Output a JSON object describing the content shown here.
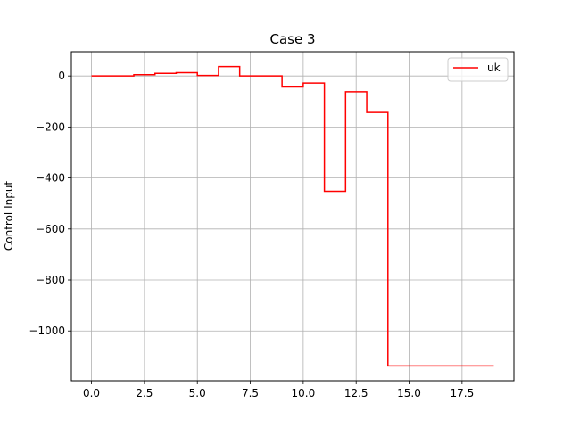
{
  "chart_data": {
    "type": "line",
    "title": "Case 3",
    "xlabel": "",
    "ylabel": "Control Input",
    "xlim": [
      -0.95,
      19.95
    ],
    "ylim": [
      -1195,
      95
    ],
    "xticks": [
      0.0,
      2.5,
      5.0,
      7.5,
      10.0,
      12.5,
      15.0,
      17.5
    ],
    "xtick_labels": [
      "0.0",
      "2.5",
      "5.0",
      "7.5",
      "10.0",
      "12.5",
      "15.0",
      "17.5"
    ],
    "yticks": [
      0,
      -200,
      -400,
      -600,
      -800,
      -1000
    ],
    "ytick_labels": [
      "0",
      "−200",
      "−400",
      "−600",
      "−800",
      "−1000"
    ],
    "grid": true,
    "legend_position": "top-right",
    "step": "post",
    "series": [
      {
        "name": "uk",
        "color": "#ff0000",
        "x": [
          0,
          1,
          2,
          3,
          4,
          5,
          6,
          7,
          8,
          9,
          10,
          11,
          12,
          13,
          14,
          15,
          16,
          17,
          18,
          19
        ],
        "values": [
          0,
          0,
          5,
          10,
          13,
          2,
          37,
          0,
          0,
          -43,
          -28,
          -452,
          -62,
          -143,
          -1137,
          -1137,
          -1137,
          -1137,
          -1137,
          -1137
        ]
      }
    ]
  }
}
